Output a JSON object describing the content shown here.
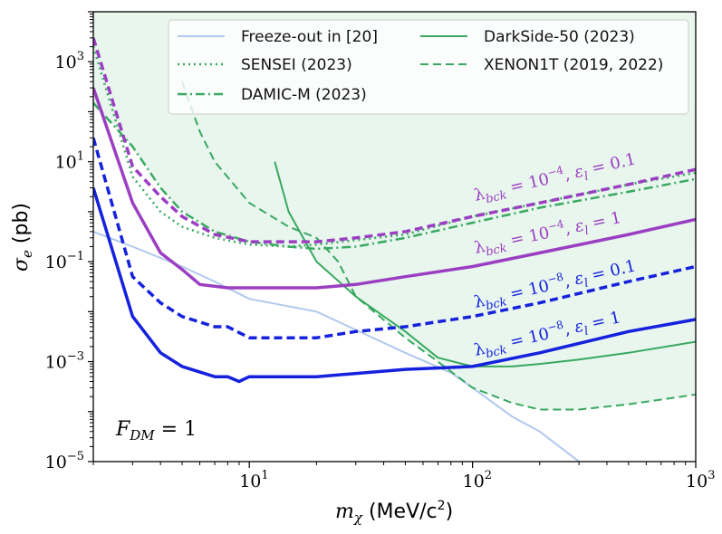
{
  "chart_data": {
    "type": "line",
    "xscale": "log",
    "yscale": "log",
    "xlim": [
      2,
      1000
    ],
    "ylim": [
      1e-05,
      10000
    ],
    "xlabel_sym": "m",
    "xlabel_sub": "χ",
    "xlabel_unit": "(MeV/c",
    "xlabel_unit_sup": "2",
    "xlabel_unit_end": ")",
    "ylabel_sym": "σ",
    "ylabel_sub": "e",
    "ylabel_unit": "(pb)",
    "xticks": [
      {
        "value": 10,
        "base": "10",
        "exp": "1"
      },
      {
        "value": 100,
        "base": "10",
        "exp": "2"
      },
      {
        "value": 1000,
        "base": "10",
        "exp": "3"
      }
    ],
    "yticks": [
      {
        "value": 1e-05,
        "base": "10",
        "exp": "−5"
      },
      {
        "value": 0.001,
        "base": "10",
        "exp": "−3"
      },
      {
        "value": 0.1,
        "base": "10",
        "exp": "−1"
      },
      {
        "value": 10,
        "base": "10",
        "exp": "1"
      },
      {
        "value": 1000,
        "base": "10",
        "exp": "3"
      }
    ],
    "annotation": {
      "sym": "F",
      "sub": "DM",
      "rest": " = 1"
    },
    "excluded_region_color": "#e8f6ee",
    "series": [
      {
        "name": "Freeze-out in [20]",
        "style": "solid",
        "color": "#b0c8ee",
        "width": 2,
        "points": [
          [
            2,
            0.4
          ],
          [
            3,
            0.2
          ],
          [
            5,
            0.08
          ],
          [
            7,
            0.04
          ],
          [
            10,
            0.018
          ],
          [
            20,
            0.01
          ],
          [
            50,
            0.0015
          ],
          [
            80,
            0.0006
          ],
          [
            100,
            0.0003
          ],
          [
            150,
            8e-05
          ],
          [
            200,
            4e-05
          ],
          [
            300,
            1e-05
          ]
        ]
      },
      {
        "name": "SENSEI (2023)",
        "style": "dotted",
        "color": "#3aa860",
        "width": 2.5,
        "points": [
          [
            2,
            2000
          ],
          [
            3,
            5
          ],
          [
            4,
            1
          ],
          [
            5,
            0.5
          ],
          [
            7,
            0.3
          ],
          [
            10,
            0.22
          ],
          [
            15,
            0.2
          ],
          [
            20,
            0.22
          ],
          [
            50,
            0.35
          ],
          [
            100,
            0.8
          ],
          [
            200,
            1.5
          ],
          [
            500,
            3.5
          ],
          [
            1000,
            6
          ]
        ]
      },
      {
        "name": "DAMIC-M (2023)",
        "style": "dashdot",
        "color": "#3aa860",
        "width": 2.5,
        "points": [
          [
            2,
            150
          ],
          [
            3,
            20
          ],
          [
            4,
            3
          ],
          [
            5,
            1
          ],
          [
            7,
            0.4
          ],
          [
            10,
            0.25
          ],
          [
            15,
            0.2
          ],
          [
            20,
            0.18
          ],
          [
            30,
            0.2
          ],
          [
            50,
            0.3
          ],
          [
            100,
            0.6
          ],
          [
            200,
            1.2
          ],
          [
            500,
            2.5
          ],
          [
            1000,
            4.5
          ]
        ]
      },
      {
        "name": "DarkSide-50 (2023)",
        "style": "solid",
        "color": "#3aa860",
        "width": 2,
        "points": [
          [
            13,
            10
          ],
          [
            15,
            1
          ],
          [
            20,
            0.1
          ],
          [
            30,
            0.02
          ],
          [
            50,
            0.004
          ],
          [
            70,
            0.0012
          ],
          [
            100,
            0.0008
          ],
          [
            150,
            0.0008
          ],
          [
            200,
            0.0009
          ],
          [
            300,
            0.0011
          ],
          [
            500,
            0.0015
          ],
          [
            1000,
            0.0025
          ]
        ]
      },
      {
        "name": "XENON1T (2019, 2022)",
        "style": "dashed",
        "color": "#3aa860",
        "width": 2,
        "points": [
          [
            5,
            400
          ],
          [
            6,
            40
          ],
          [
            7,
            10
          ],
          [
            10,
            1.5
          ],
          [
            15,
            0.5
          ],
          [
            20,
            0.3
          ],
          [
            25,
            0.1
          ],
          [
            30,
            0.02
          ],
          [
            50,
            0.003
          ],
          [
            70,
            0.001
          ],
          [
            100,
            0.0003
          ],
          [
            150,
            0.00015
          ],
          [
            200,
            0.00011
          ],
          [
            300,
            0.00011
          ],
          [
            500,
            0.00014
          ],
          [
            1000,
            0.00022
          ]
        ]
      },
      {
        "name": "λbck = 1e-4, εl = 0.1",
        "style": "dashed",
        "color": "#9b3fc2",
        "width": 3.5,
        "points": [
          [
            2,
            3000
          ],
          [
            3,
            8
          ],
          [
            4,
            2
          ],
          [
            5,
            0.8
          ],
          [
            7,
            0.35
          ],
          [
            10,
            0.25
          ],
          [
            15,
            0.25
          ],
          [
            20,
            0.25
          ],
          [
            30,
            0.3
          ],
          [
            50,
            0.4
          ],
          [
            100,
            0.8
          ],
          [
            200,
            1.5
          ],
          [
            500,
            3.5
          ],
          [
            1000,
            7
          ]
        ]
      },
      {
        "name": "λbck = 1e-4, εl = 1",
        "style": "solid",
        "color": "#9b3fc2",
        "width": 3.5,
        "points": [
          [
            2,
            300
          ],
          [
            3,
            1.5
          ],
          [
            4,
            0.15
          ],
          [
            5,
            0.07
          ],
          [
            6,
            0.035
          ],
          [
            8,
            0.03
          ],
          [
            10,
            0.03
          ],
          [
            15,
            0.03
          ],
          [
            20,
            0.03
          ],
          [
            30,
            0.035
          ],
          [
            50,
            0.05
          ],
          [
            100,
            0.08
          ],
          [
            200,
            0.15
          ],
          [
            500,
            0.35
          ],
          [
            1000,
            0.7
          ]
        ]
      },
      {
        "name": "λbck = 1e-8, εl = 0.1",
        "style": "dashed",
        "color": "#1521dd",
        "width": 3.5,
        "points": [
          [
            2,
            30
          ],
          [
            3,
            0.05
          ],
          [
            4,
            0.015
          ],
          [
            5,
            0.008
          ],
          [
            7,
            0.005
          ],
          [
            8,
            0.005
          ],
          [
            10,
            0.003
          ],
          [
            15,
            0.003
          ],
          [
            20,
            0.003
          ],
          [
            30,
            0.004
          ],
          [
            50,
            0.005
          ],
          [
            100,
            0.008
          ],
          [
            200,
            0.015
          ],
          [
            500,
            0.04
          ],
          [
            1000,
            0.08
          ]
        ]
      },
      {
        "name": "λbck = 1e-8, εl = 1",
        "style": "solid",
        "color": "#1521dd",
        "width": 3.5,
        "points": [
          [
            2,
            3
          ],
          [
            3,
            0.008
          ],
          [
            4,
            0.0015
          ],
          [
            5,
            0.0008
          ],
          [
            7,
            0.0005
          ],
          [
            8,
            0.0005
          ],
          [
            9,
            0.0004
          ],
          [
            10,
            0.0005
          ],
          [
            15,
            0.0005
          ],
          [
            20,
            0.0005
          ],
          [
            50,
            0.0007
          ],
          [
            100,
            0.0008
          ],
          [
            200,
            0.0015
          ],
          [
            500,
            0.004
          ],
          [
            1000,
            0.007
          ]
        ]
      }
    ],
    "legend": {
      "placement": "top-right",
      "entries": [
        {
          "label": "Freeze-out in [20]",
          "series": 0
        },
        {
          "label": "DarkSide-50 (2023)",
          "series": 3
        },
        {
          "label": "SENSEI (2023)",
          "series": 1
        },
        {
          "label": "XENON1T (2019, 2022)",
          "series": 4
        },
        {
          "label": "DAMIC-M (2023)",
          "series": 2
        }
      ]
    },
    "curve_labels": [
      {
        "series": 5,
        "color": "#9b3fc2",
        "lam": "λ",
        "lam_sub": "bck",
        "lam_eq": " = 10",
        "lam_exp": "−4",
        "eps": "ε",
        "eps_sub": "l",
        "eps_eq": " = 0.1"
      },
      {
        "series": 6,
        "color": "#9b3fc2",
        "lam": "λ",
        "lam_sub": "bck",
        "lam_eq": " = 10",
        "lam_exp": "−4",
        "eps": "ε",
        "eps_sub": "l",
        "eps_eq": " = 1"
      },
      {
        "series": 7,
        "color": "#1521dd",
        "lam": "λ",
        "lam_sub": "bck",
        "lam_eq": " = 10",
        "lam_exp": "−8",
        "eps": "ε",
        "eps_sub": "l",
        "eps_eq": " = 0.1"
      },
      {
        "series": 8,
        "color": "#1521dd",
        "lam": "λ",
        "lam_sub": "bck",
        "lam_eq": " = 10",
        "lam_exp": "−8",
        "eps": "ε",
        "eps_sub": "l",
        "eps_eq": " = 1"
      }
    ]
  }
}
